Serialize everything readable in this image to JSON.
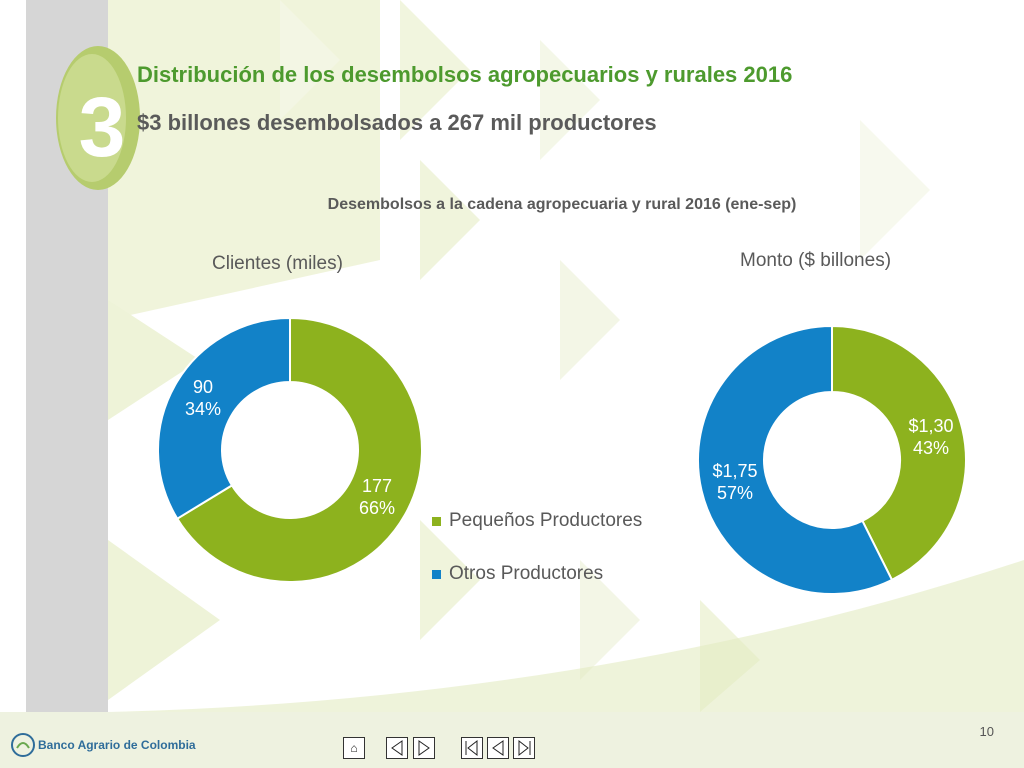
{
  "header": {
    "section_number": "3",
    "title": "Distribución de los desembolsos agropecuarios y rurales 2016",
    "subtitle": "$3 billones desembolsados a 267 mil productores"
  },
  "colors": {
    "green": "#8db21e",
    "blue": "#1282c8",
    "title_green": "#4d9a2e"
  },
  "chart_data": {
    "title": "Desembolsos a la cadena agropecuaria y rural 2016 (ene-sep)",
    "legend": [
      "Pequeños Productores",
      "Otros Productores"
    ],
    "legend_placement": "center",
    "charts": [
      {
        "type": "pie",
        "subtitle": "Clientes (miles)",
        "categories": [
          "Pequeños Productores",
          "Otros Productores"
        ],
        "values": [
          177,
          90
        ],
        "percents": [
          66,
          34
        ],
        "labels": [
          "177\n66%",
          "90\n34%"
        ]
      },
      {
        "type": "pie",
        "subtitle": "Monto ($ billones)",
        "categories": [
          "Pequeños Productores",
          "Otros Productores"
        ],
        "values": [
          1.3,
          1.75
        ],
        "percents": [
          43,
          57
        ],
        "labels": [
          "$1,30\n43%",
          "$1,75\n57%"
        ]
      }
    ]
  },
  "footer": {
    "logo_text": "Banco Agrario de Colombia",
    "page_number": "10",
    "nav_icons": [
      "home-icon",
      "prev-icon",
      "next-icon",
      "first-icon",
      "back-icon",
      "last-icon"
    ]
  }
}
